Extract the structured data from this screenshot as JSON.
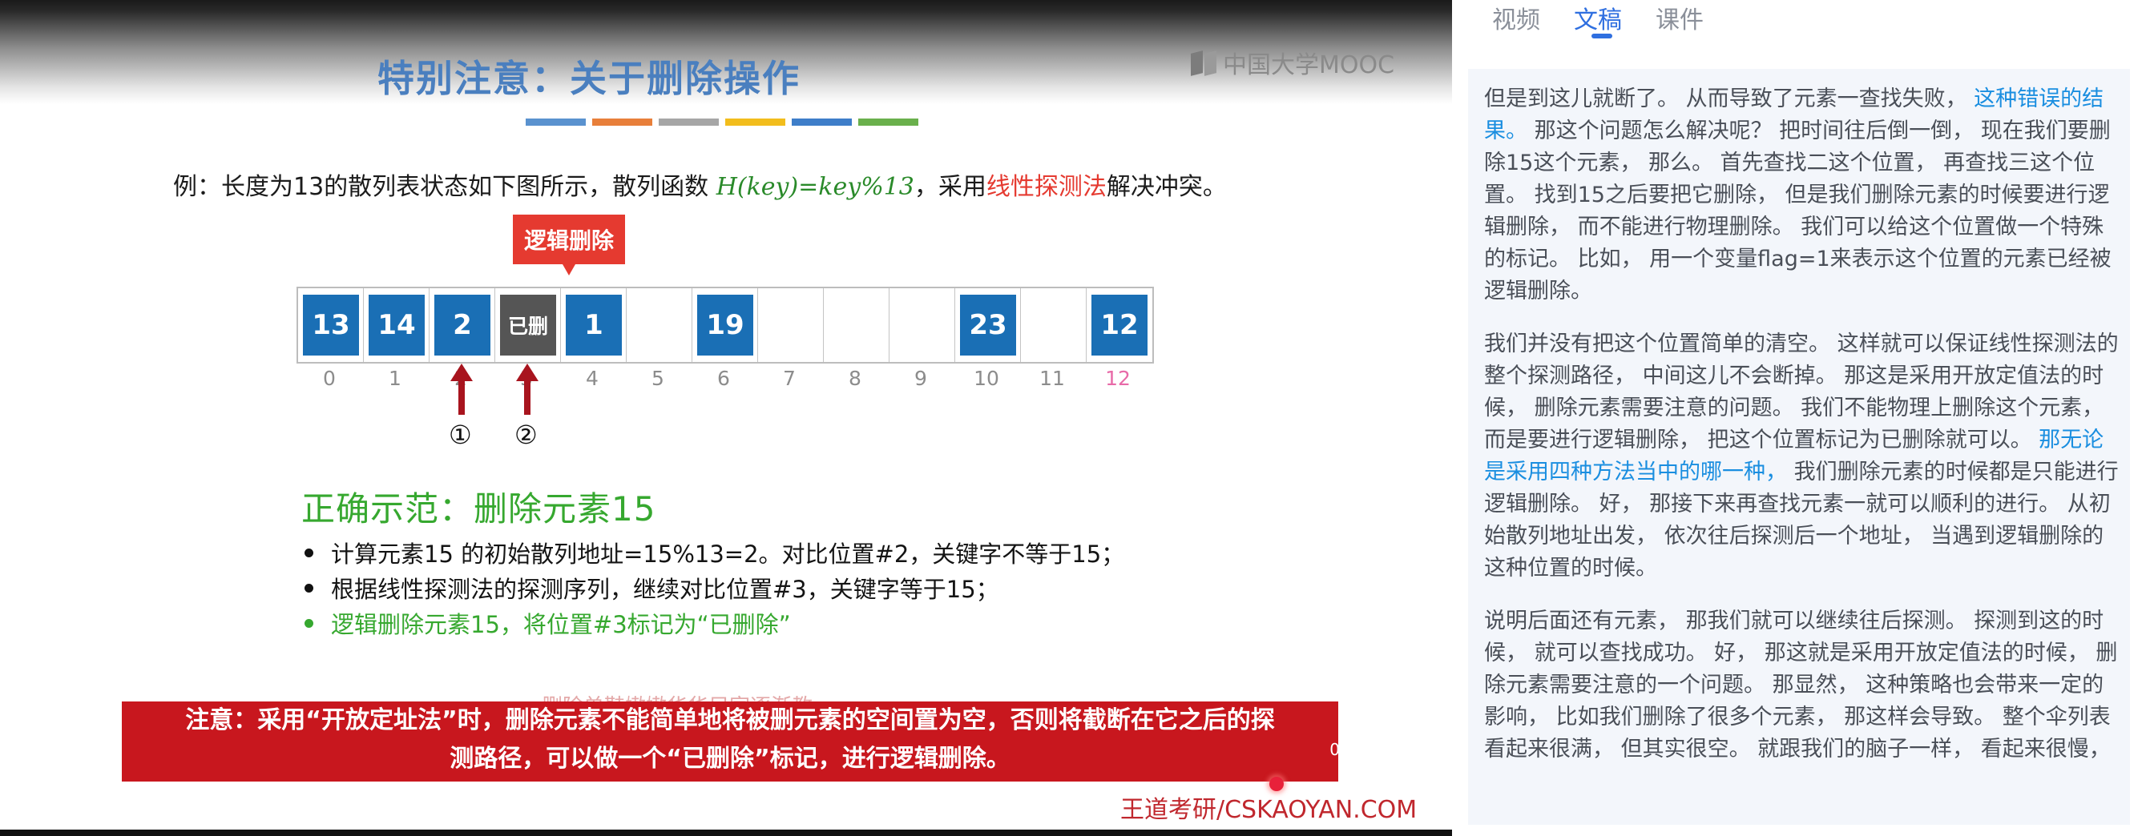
{
  "video": {
    "logo_text": "中国大学MOOC",
    "title": "特别注意：关于删除操作",
    "title_bar_colors": [
      "#5a92cf",
      "#e87f3a",
      "#a6a6a6",
      "#f2bd1c",
      "#3e7ec9",
      "#6ab04c"
    ],
    "example": {
      "prefix": "例：长度为13的散列表状态如下图所示，散列函数 ",
      "function": "H(key)=key%13",
      "middle": "，采用",
      "method": "线性探测法",
      "suffix": "解决冲突。"
    },
    "callout": "逻辑删除",
    "table": {
      "cells": [
        "13",
        "14",
        "2",
        "已删",
        "1",
        "",
        "19",
        "",
        "",
        "",
        "23",
        "",
        "12"
      ],
      "indices": [
        "0",
        "1",
        "2",
        "3",
        "4",
        "5",
        "6",
        "7",
        "8",
        "9",
        "10",
        "11",
        "12"
      ]
    },
    "markers": [
      "①",
      "②"
    ],
    "section_heading": "正确示范：删除元素15",
    "bullets": [
      "计算元素15 的初始散列地址=15%13=2。对比位置#2，关键字不等于15；",
      "根据线性探测法的探测序列，继续对比位置#3，关键字等于15；",
      "逻辑删除元素15，将位置#3标记为“已删除”"
    ],
    "faint_text": "删除单鞋嫩嫩华华兄家逐渐教",
    "note": {
      "line1": "注意：采用“开放定址法”时，删除元素不能简单地将被删元素的空间置为空，否则将截断在它之后的探",
      "line2": "测路径，可以做一个“已删除”标记，进行逻辑删除。",
      "suffix": "0"
    },
    "watermark": "王道考研/CSKAOYAN.COM"
  },
  "panel": {
    "tabs": [
      {
        "label": "视频",
        "active": false
      },
      {
        "label": "文稿",
        "active": true
      },
      {
        "label": "课件",
        "active": false
      }
    ],
    "paragraphs": [
      {
        "before": "但是到这儿就断了。 从而导致了元素一查找失败， ",
        "highlight": "这种错误的结果。",
        "after": " 那这个问题怎么解决呢？ 把时间往后倒一倒， 现在我们要删除15这个元素， 那么。 首先查找二这个位置， 再查找三这个位置。 找到15之后要把它删除， 但是我们删除元素的时候要进行逻辑删除， 而不能进行物理删除。 我们可以给这个位置做一个特殊的标记。 比如， 用一个变量flag=1来表示这个位置的元素已经被逻辑删除。"
      },
      {
        "before": "我们并没有把这个位置简单的清空。 这样就可以保证线性探测法的整个探测路径， 中间这儿不会断掉。 那这是采用开放定值法的时候， 删除元素需要注意的问题。 我们不能物理上删除这个元素， 而是要进行逻辑删除， 把这个位置标记为已删除就可以。 ",
        "highlight": "那无论是采用四种方法当中的哪一种，",
        "after": " 我们删除元素的时候都是只能进行逻辑删除。 好， 那接下来再查找元素一就可以顺利的进行。 从初始散列地址出发， 依次往后探测后一个地址， 当遇到逻辑删除的这种位置的时候。"
      },
      {
        "before": "说明后面还有元素， 那我们就可以继续往后探测。 探测到这的时候， 就可以查找成功。 好， 那这就是采用开放定值法的时候， 删除元素需要注意的一个问题。 那显然， 这种策略也会带来一定的影响， 比如我们删除了很多个元素， 那这样会导致。 整个伞列表看起来很满， 但其实很空。 就跟我们的脑子一样， 看起来很慢，",
        "highlight": "",
        "after": ""
      }
    ]
  }
}
